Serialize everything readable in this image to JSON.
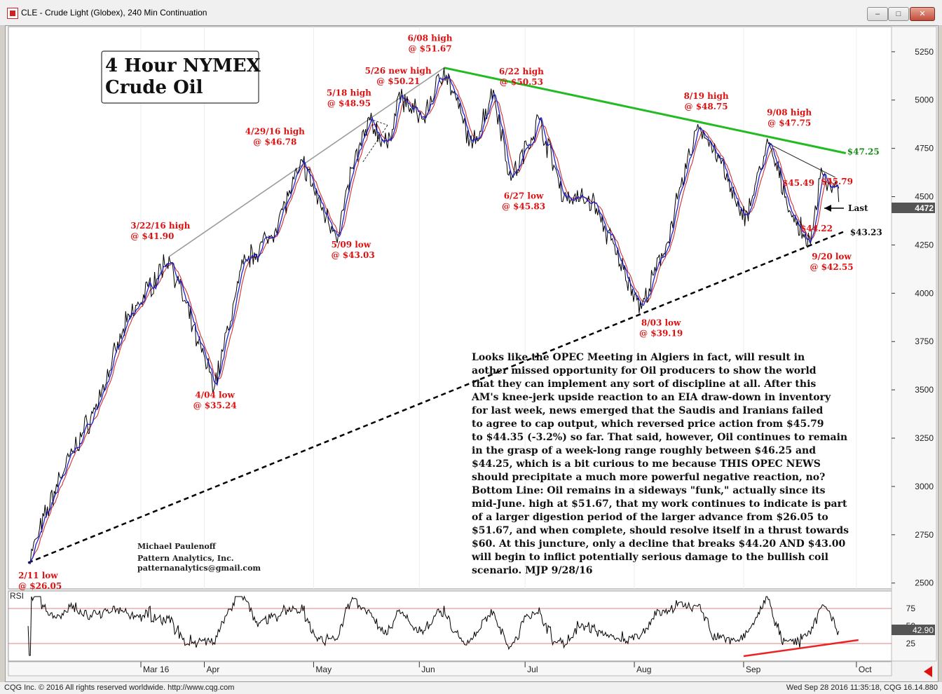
{
  "window": {
    "title": "CLE - Crude Light (Globex), 240 Min Continuation",
    "buttons": {
      "minimize": "–",
      "maximize": "□",
      "close": "✕"
    }
  },
  "status": {
    "left": "CQG Inc. © 2016 All rights reserved worldwide. http://www.cqg.com",
    "right": "Wed Sep 28 2016 11:35:18, CQG 16.14.880"
  },
  "chart": {
    "box_title": [
      "4 Hour NYMEX",
      "Crude Oil"
    ],
    "commentary": [
      "Looks like the OPEC Meeting in Algiers in fact, will result in",
      "aother missed opportunity for Oil producers to show the world",
      "that they can implement any sort of discipline at all. After this",
      "AM's knee-jerk upside reaction to an EIA draw-down in inventory",
      "for last week, news emerged that the Saudis and Iranians failed",
      "to agree to cap output, which reversed price action from $45.79",
      "to $44.35 (-3.2%) so far. That said, however, Oil continues to remain",
      "in the grasp of a week-long range roughly between $46.25 and",
      "$44.25, which is a bit curious to me because THIS OPEC NEWS",
      "should precipitate a much more powerful negative reaction, no?",
      "Bottom Line: Oil remains in a sideways \"funk,\" actually since its",
      "mid-June. high at $51.67, that my work continues to indicate is part",
      "of a larger digestion period of the larger advance from $26.05 to",
      "$51.67, and when complete, should resolve itself in a thrust towards",
      "$60. At this juncture, only a decline that breaks $44.20 AND $43.00",
      "will begin to inflict potentially serious damage to the bullish coil",
      "scenario.  MJP 9/28/16"
    ],
    "credits": [
      "Michael Paulenoff",
      "Pattern Analytics, Inc.",
      "patternanalytics@gmail.com"
    ],
    "last_label": "Last",
    "last_value": "4472",
    "rsi_label": "RSI",
    "rsi_value": "42.90",
    "colors": {
      "price": "#000000",
      "ma_fast": "#1f1fd0",
      "ma_slow": "#d03030",
      "resistance": "#22bb22",
      "support": "#000000",
      "annotation": "#dd1111",
      "rsi_trend": "#ee2222"
    }
  },
  "chart_data": {
    "type": "line",
    "price_axis": {
      "ticks": [
        "5250",
        "5000",
        "4750",
        "4500",
        "4250",
        "4000",
        "3750",
        "3500",
        "3250",
        "3000",
        "2750",
        "2500"
      ],
      "range": [
        2470,
        5380
      ]
    },
    "rsi_axis": {
      "ticks": [
        "75",
        "50",
        "25"
      ],
      "range": [
        0,
        100
      ]
    },
    "x_labels": [
      "Mar 16",
      "Apr",
      "May",
      "Jun",
      "Jul",
      "Aug",
      "Sep",
      "Oct"
    ],
    "pivots": [
      {
        "date": "2016-02-11",
        "price": 2605,
        "label": [
          "2/11 low",
          "@ $26.05"
        ]
      },
      {
        "date": "2016-03-22",
        "price": 4190,
        "label": [
          "3/22/16 high",
          "@ $41.90"
        ]
      },
      {
        "date": "2016-04-04",
        "price": 3524,
        "label": [
          "4/04 low",
          "@ $35.24"
        ]
      },
      {
        "date": "2016-04-29",
        "price": 4678,
        "label": [
          "4/29/16 high",
          "@ $46.78"
        ]
      },
      {
        "date": "2016-05-09",
        "price": 4303,
        "label": [
          "5/09 low",
          "@ $43.03"
        ]
      },
      {
        "date": "2016-05-18",
        "price": 4895,
        "label": [
          "5/18 high",
          "@ $48.95"
        ]
      },
      {
        "date": "2016-05-26",
        "price": 5021,
        "label": [
          "5/26 new high",
          "@ $50.21"
        ]
      },
      {
        "date": "2016-06-08",
        "price": 5167,
        "label": [
          "6/08 high",
          "@ $51.67"
        ]
      },
      {
        "date": "2016-06-22",
        "price": 5053,
        "label": [
          "6/22 high",
          "@ $50.53"
        ]
      },
      {
        "date": "2016-06-27",
        "price": 4583,
        "label": [
          "6/27 low",
          "@ $45.83"
        ]
      },
      {
        "date": "2016-08-03",
        "price": 3919,
        "label": [
          "8/03 low",
          "@ $39.19"
        ]
      },
      {
        "date": "2016-08-19",
        "price": 4875,
        "label": [
          "8/19 high",
          "@ $48.75"
        ]
      },
      {
        "date": "2016-09-08",
        "price": 4775,
        "label": [
          "9/08 high",
          "@ $47.75"
        ]
      },
      {
        "date": "2016-09-20",
        "price": 4255,
        "label": [
          "9/20 low",
          "@ $42.55"
        ]
      }
    ],
    "recent_levels": [
      {
        "label": "$45.49",
        "price": 4549
      },
      {
        "label": "$45.79",
        "price": 4579
      },
      {
        "label": "$44.22",
        "price": 4422
      }
    ],
    "trendlines": [
      {
        "name": "resistance",
        "from": {
          "date": "2016-06-08",
          "price": 5167
        },
        "to": {
          "date": "2016-09-30",
          "price": 4725
        },
        "label": "$47.25"
      },
      {
        "name": "support",
        "from": {
          "date": "2016-02-11",
          "price": 2605
        },
        "to": {
          "date": "2016-09-30",
          "price": 4323
        },
        "label": "$43.23"
      }
    ],
    "rsi": {
      "last": 42.9,
      "overbought": 75,
      "oversold": 25
    }
  }
}
